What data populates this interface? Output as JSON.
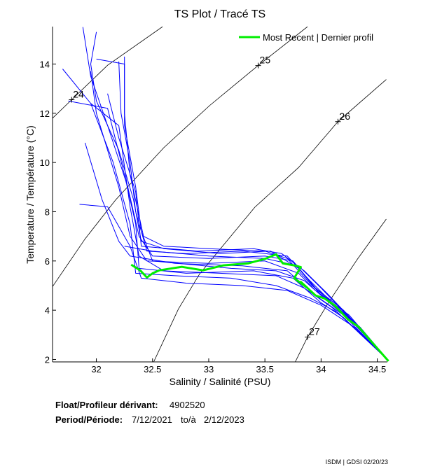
{
  "chart_data": {
    "type": "line",
    "title": "TS Plot / Tracé TS",
    "xlabel": "Salinity / Salinité (PSU)",
    "ylabel": "Temperature / Température (°C)",
    "xlim": [
      31.61,
      34.59
    ],
    "ylim": [
      1.9,
      15.52
    ],
    "xticks": [
      32,
      32.5,
      33,
      33.5,
      34,
      34.5
    ],
    "xtick_labels": [
      "32",
      "32.5",
      "33",
      "33.5",
      "34",
      "34.5"
    ],
    "yticks": [
      2,
      4,
      6,
      8,
      10,
      12,
      14
    ],
    "ytick_labels": [
      "2",
      "4",
      "6",
      "8",
      "10",
      "12",
      "14"
    ],
    "grid": false,
    "legend": {
      "position": "top-right",
      "entries": [
        "Most Recent | Dernier profil"
      ]
    },
    "colors": {
      "profiles": "#0000ff",
      "most_recent": "#00ee00",
      "contours": "#000000"
    },
    "density_contours": [
      {
        "label": "24",
        "label_at": [
          31.78,
          12.55
        ],
        "points": [
          [
            31.61,
            11.8
          ],
          [
            31.78,
            12.55
          ],
          [
            32.1,
            13.95
          ],
          [
            32.59,
            15.52
          ]
        ]
      },
      {
        "label": "25",
        "label_at": [
          33.44,
          13.94
        ],
        "points": [
          [
            31.61,
            4.96
          ],
          [
            31.9,
            6.9
          ],
          [
            32.17,
            8.47
          ],
          [
            32.6,
            10.6
          ],
          [
            33.01,
            12.32
          ],
          [
            33.44,
            13.94
          ],
          [
            33.88,
            15.52
          ]
        ]
      },
      {
        "label": "26",
        "label_at": [
          34.15,
          11.66
        ],
        "points": [
          [
            32.51,
            1.9
          ],
          [
            32.73,
            4.05
          ],
          [
            32.92,
            5.48
          ],
          [
            33.41,
            8.18
          ],
          [
            33.8,
            9.8
          ],
          [
            34.15,
            11.66
          ],
          [
            34.58,
            13.37
          ]
        ]
      },
      {
        "label": "27",
        "label_at": [
          33.88,
          2.91
        ],
        "points": [
          [
            33.77,
            1.9
          ],
          [
            33.88,
            2.91
          ],
          [
            34.07,
            4.34
          ],
          [
            34.32,
            6.05
          ],
          [
            34.58,
            7.7
          ]
        ]
      }
    ],
    "series": [
      {
        "values": [
          [
            31.88,
            15.5
          ],
          [
            31.95,
            13.5
          ],
          [
            32.1,
            11.5
          ],
          [
            32.28,
            9
          ],
          [
            32.38,
            7
          ],
          [
            32.5,
            6.2
          ],
          [
            33,
            6.1
          ],
          [
            33.5,
            6.2
          ],
          [
            33.75,
            6
          ],
          [
            33.95,
            4.9
          ],
          [
            34.2,
            4
          ],
          [
            34.6,
            1.95
          ]
        ]
      },
      {
        "values": [
          [
            32.2,
            14.1
          ],
          [
            32.22,
            12
          ],
          [
            32.3,
            10
          ],
          [
            32.35,
            8
          ],
          [
            32.45,
            6.4
          ],
          [
            32.8,
            6.3
          ],
          [
            33.3,
            6.4
          ],
          [
            33.7,
            6.2
          ],
          [
            33.9,
            5.2
          ],
          [
            34.1,
            4.3
          ],
          [
            34.35,
            3.3
          ],
          [
            34.6,
            1.95
          ]
        ]
      },
      {
        "values": [
          [
            31.7,
            13.8
          ],
          [
            31.95,
            12.4
          ],
          [
            32.15,
            10
          ],
          [
            32.3,
            7.5
          ],
          [
            32.35,
            5.5
          ],
          [
            32.7,
            5.4
          ],
          [
            33.2,
            5.3
          ],
          [
            33.6,
            5
          ],
          [
            33.9,
            4.5
          ],
          [
            34.15,
            3.9
          ],
          [
            34.6,
            1.95
          ]
        ]
      },
      {
        "values": [
          [
            32.0,
            15.3
          ],
          [
            31.95,
            14
          ],
          [
            32.0,
            12.5
          ],
          [
            32.2,
            10.5
          ],
          [
            32.33,
            8.5
          ],
          [
            32.4,
            6.8
          ],
          [
            32.6,
            6.5
          ],
          [
            33.1,
            6.3
          ],
          [
            33.55,
            6.4
          ],
          [
            33.8,
            5.7
          ],
          [
            34.0,
            4.6
          ],
          [
            34.3,
            3.5
          ],
          [
            34.6,
            1.95
          ]
        ]
      },
      {
        "values": [
          [
            31.75,
            12.5
          ],
          [
            32.1,
            12.2
          ],
          [
            32.25,
            9.5
          ],
          [
            32.35,
            7.5
          ],
          [
            32.38,
            5.7
          ],
          [
            32.8,
            5.5
          ],
          [
            33.4,
            5.6
          ],
          [
            33.75,
            5.3
          ],
          [
            34.0,
            4.3
          ],
          [
            34.2,
            3.7
          ],
          [
            34.6,
            1.95
          ]
        ]
      },
      {
        "values": [
          [
            31.95,
            13.7
          ],
          [
            32.0,
            12
          ],
          [
            32.2,
            9
          ],
          [
            32.3,
            7
          ],
          [
            32.45,
            6
          ],
          [
            33.0,
            5.9
          ],
          [
            33.5,
            6.0
          ],
          [
            33.8,
            5.5
          ],
          [
            33.95,
            4.8
          ],
          [
            34.25,
            3.8
          ],
          [
            34.6,
            1.95
          ]
        ]
      },
      {
        "values": [
          [
            32.0,
            14.2
          ],
          [
            32.25,
            14.0
          ],
          [
            32.25,
            12
          ],
          [
            32.3,
            9.5
          ],
          [
            32.42,
            7
          ],
          [
            32.6,
            6.6
          ],
          [
            33.0,
            6.5
          ],
          [
            33.5,
            6.4
          ],
          [
            33.7,
            6.1
          ],
          [
            33.92,
            5.0
          ],
          [
            34.2,
            3.9
          ],
          [
            34.6,
            1.95
          ]
        ]
      },
      {
        "values": [
          [
            31.9,
            10.8
          ],
          [
            32.05,
            8.5
          ],
          [
            32.2,
            6.8
          ],
          [
            32.3,
            6.2
          ],
          [
            32.7,
            5.9
          ],
          [
            33.3,
            5.8
          ],
          [
            33.7,
            5.6
          ],
          [
            33.95,
            4.6
          ],
          [
            34.2,
            3.8
          ],
          [
            34.6,
            1.95
          ]
        ]
      },
      {
        "values": [
          [
            31.85,
            8.3
          ],
          [
            32.1,
            8.2
          ],
          [
            32.3,
            6.6
          ],
          [
            32.4,
            5.3
          ],
          [
            32.8,
            5.1
          ],
          [
            33.3,
            5.0
          ],
          [
            33.7,
            4.8
          ],
          [
            34.0,
            4.2
          ],
          [
            34.3,
            3.3
          ],
          [
            34.6,
            1.95
          ]
        ]
      },
      {
        "values": [
          [
            32.1,
            12.8
          ],
          [
            32.2,
            11
          ],
          [
            32.35,
            8.8
          ],
          [
            32.4,
            6.6
          ],
          [
            32.9,
            6.4
          ],
          [
            33.4,
            6.5
          ],
          [
            33.65,
            6.3
          ],
          [
            33.85,
            5.6
          ],
          [
            34.05,
            4.7
          ],
          [
            34.3,
            3.5
          ],
          [
            34.6,
            1.95
          ]
        ]
      },
      {
        "values": [
          [
            32.25,
            14.3
          ],
          [
            32.25,
            11.5
          ],
          [
            32.35,
            9
          ],
          [
            32.4,
            7.2
          ],
          [
            32.5,
            6.0
          ],
          [
            33.2,
            5.7
          ],
          [
            33.6,
            5.6
          ],
          [
            33.85,
            5.2
          ],
          [
            34.05,
            4.4
          ],
          [
            34.35,
            3.2
          ],
          [
            34.6,
            1.95
          ]
        ]
      },
      {
        "values": [
          [
            31.95,
            12.4
          ],
          [
            32.2,
            11.5
          ],
          [
            32.3,
            8.2
          ],
          [
            32.38,
            6.2
          ],
          [
            32.6,
            5.6
          ],
          [
            33.1,
            5.5
          ],
          [
            33.6,
            5.4
          ],
          [
            33.85,
            4.9
          ],
          [
            34.1,
            4.1
          ],
          [
            34.6,
            1.95
          ]
        ]
      },
      {
        "values": [
          [
            32.25,
            6.6
          ],
          [
            32.5,
            6.4
          ],
          [
            33.0,
            6.2
          ],
          [
            33.5,
            6.1
          ],
          [
            33.8,
            5.8
          ],
          [
            34.0,
            4.9
          ],
          [
            34.25,
            3.7
          ],
          [
            34.6,
            1.95
          ]
        ]
      },
      {
        "name": "Most Recent | Dernier profil",
        "values": [
          [
            32.31,
            5.85
          ],
          [
            32.39,
            5.62
          ],
          [
            32.45,
            5.33
          ],
          [
            32.5,
            5.5
          ],
          [
            32.56,
            5.62
          ],
          [
            32.76,
            5.76
          ],
          [
            32.95,
            5.62
          ],
          [
            33.13,
            5.82
          ],
          [
            33.35,
            5.9
          ],
          [
            33.51,
            6.1
          ],
          [
            33.6,
            6.27
          ],
          [
            33.66,
            5.9
          ],
          [
            33.76,
            5.82
          ],
          [
            33.82,
            5.75
          ],
          [
            33.76,
            5.3
          ],
          [
            33.88,
            4.9
          ],
          [
            33.82,
            5.15
          ],
          [
            33.95,
            4.6
          ],
          [
            34.03,
            4.48
          ],
          [
            34.12,
            4.2
          ],
          [
            34.24,
            3.62
          ],
          [
            34.33,
            3.34
          ],
          [
            34.6,
            1.93
          ]
        ]
      }
    ]
  },
  "info": {
    "float_label": "Float/Profileur dérivant:",
    "float_value": "4902520",
    "period_label": "Period/Période:",
    "period_start": "7/12/2021",
    "period_sep": "to/à",
    "period_end": "2/12/2023"
  },
  "footer": "ISDM | GDSI 02/20/23"
}
